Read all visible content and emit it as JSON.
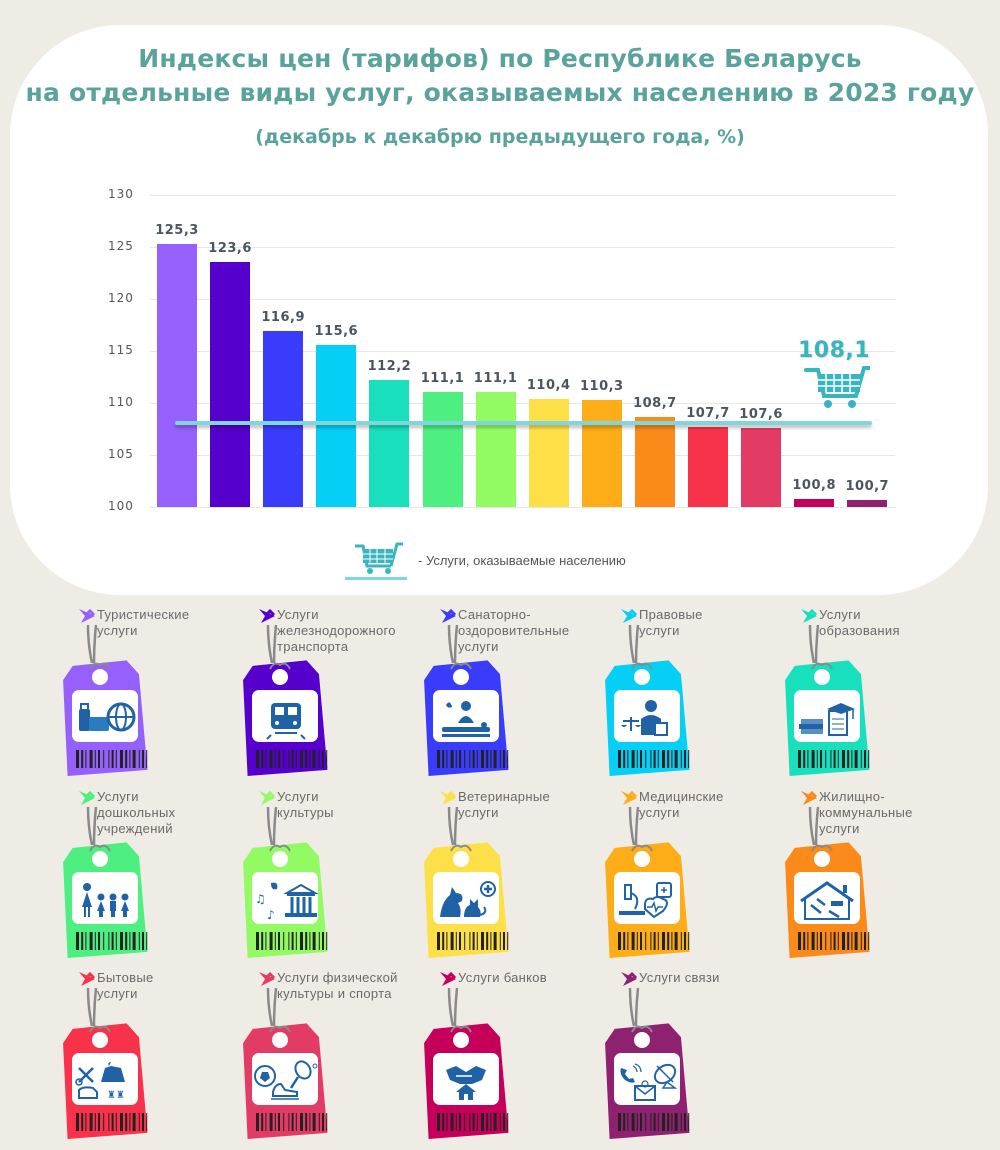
{
  "header": {
    "title_line1": "Индексы цен (тарифов) по Республике Беларусь",
    "title_line2": "на отдельные виды услуг, оказываемых населению в 2023 году",
    "subtitle": "(декабрь к декабрю предыдущего года, %)"
  },
  "colors": {
    "title": "#5aa39c",
    "reference": "#39b5c0",
    "background": "#efece6",
    "icon": "#1f63a6"
  },
  "chart_data": {
    "type": "bar",
    "title": "Индексы цен (тарифов) по Республике Беларусь на отдельные виды услуг, оказываемых населению в 2023 году",
    "subtitle": "(декабрь к декабрю предыдущего года, %)",
    "xlabel": "",
    "ylabel": "",
    "ylim": [
      100,
      130
    ],
    "yticks": [
      "130",
      "125",
      "120",
      "115",
      "110",
      "105",
      "100"
    ],
    "grid": true,
    "categories": [
      "Туристические услуги",
      "Услуги железнодорожного транспорта",
      "Санаторно-оздоровительные услуги",
      "Правовые услуги",
      "Услуги образования",
      "Услуги дошкольных учреждений",
      "Услуги культуры",
      "Ветеринарные услуги",
      "Медицинские услуги",
      "Жилищно-коммунальные услуги",
      "Бытовые услуги",
      "Услуги физической культуры и спорта",
      "Услуги банков",
      "Услуги связи"
    ],
    "values": [
      125.3,
      123.6,
      116.9,
      115.6,
      112.2,
      111.1,
      111.1,
      110.4,
      110.3,
      108.7,
      107.7,
      107.6,
      100.8,
      100.7
    ],
    "value_labels": [
      "125,3",
      "123,6",
      "116,9",
      "115,6",
      "112,2",
      "111,1",
      "111,1",
      "110,4",
      "110,3",
      "108,7",
      "107,7",
      "107,6",
      "100,8",
      "100,7"
    ],
    "bar_colors": [
      "#9560fc",
      "#5500cc",
      "#3a3cfc",
      "#05cff5",
      "#18e0bd",
      "#4def80",
      "#92fb63",
      "#fde047",
      "#fcad17",
      "#fa8a1a",
      "#f8324a",
      "#e23c66",
      "#c6005a",
      "#8e2170"
    ],
    "reference_line": {
      "label": "Услуги, оказываемые населению",
      "value": 108.1,
      "value_label": "108,1",
      "color": "#7fd6dc"
    },
    "legend": {
      "position": "bottom",
      "entries": [
        "- Услуги, оказываемые населению"
      ]
    }
  },
  "legend": {
    "icon": "shopping-cart-icon",
    "text": "- Услуги, оказываемые населению"
  },
  "tags": [
    {
      "label": "Туристические\nуслуги",
      "icon": "luggage-globe-icon",
      "color": "#9560fc"
    },
    {
      "label": "Услуги\nжелезнодорожного\nтранспорта",
      "icon": "train-icon",
      "color": "#5500cc"
    },
    {
      "label": "Санаторно-\nоздоровительные\nуслуги",
      "icon": "massage-spa-icon",
      "color": "#3a3cfc"
    },
    {
      "label": "Правовые\nуслуги",
      "icon": "lawyer-scales-icon",
      "color": "#05cff5"
    },
    {
      "label": "Услуги\nобразования",
      "icon": "books-graduation-icon",
      "color": "#18e0bd"
    },
    {
      "label": "Услуги\nдошкольных\nучреждений",
      "icon": "teacher-children-icon",
      "color": "#4def80"
    },
    {
      "label": "Услуги\nкультуры",
      "icon": "theatre-music-icon",
      "color": "#92fb63"
    },
    {
      "label": "Ветеринарные\nуслуги",
      "icon": "dog-cat-medical-icon",
      "color": "#fde047"
    },
    {
      "label": "Медицинские\nуслуги",
      "icon": "microscope-heart-icon",
      "color": "#fcad17"
    },
    {
      "label": "Жилищно-\nкоммунальные\nуслуги",
      "icon": "house-tools-icon",
      "color": "#fa8a1a"
    },
    {
      "label": "Бытовые\nуслуги",
      "icon": "household-services-icon",
      "color": "#f8324a"
    },
    {
      "label": "Услуги физической\nкультуры и спорта",
      "icon": "sports-ball-racket-icon",
      "color": "#e23c66"
    },
    {
      "label": "Услуги банков",
      "icon": "handshake-house-icon",
      "color": "#c6005a"
    },
    {
      "label": "Услуги связи",
      "icon": "phone-satellite-mail-icon",
      "color": "#8e2170"
    }
  ]
}
